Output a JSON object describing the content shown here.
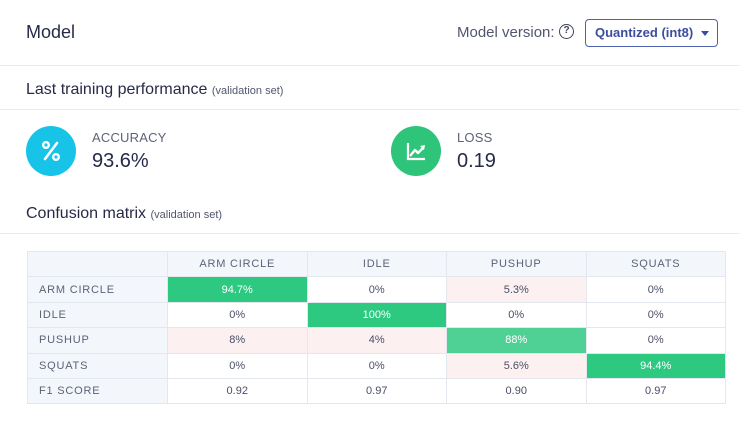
{
  "header": {
    "title": "Model",
    "model_version_label": "Model version:",
    "help_symbol": "?",
    "version_select_value": "Quantized (int8)"
  },
  "training": {
    "heading": "Last training performance",
    "heading_sub": "(validation set)"
  },
  "metrics": {
    "accuracy": {
      "label": "ACCURACY",
      "value": "93.6%",
      "icon": "percent-icon",
      "color": "#17c4e8"
    },
    "loss": {
      "label": "LOSS",
      "value": "0.19",
      "icon": "trending-chart-icon",
      "color": "#2ec47a"
    }
  },
  "confusion": {
    "heading": "Confusion matrix",
    "heading_sub": "(validation set)",
    "columns": [
      "ARM CIRCLE",
      "IDLE",
      "PUSHUP",
      "SQUATS"
    ],
    "rows": [
      {
        "label": "ARM CIRCLE",
        "cells": [
          "94.7%",
          "0%",
          "5.3%",
          "0%"
        ]
      },
      {
        "label": "IDLE",
        "cells": [
          "0%",
          "100%",
          "0%",
          "0%"
        ]
      },
      {
        "label": "PUSHUP",
        "cells": [
          "8%",
          "4%",
          "88%",
          "0%"
        ]
      },
      {
        "label": "SQUATS",
        "cells": [
          "0%",
          "0%",
          "5.6%",
          "94.4%"
        ]
      }
    ],
    "f1": {
      "label": "F1 SCORE",
      "cells": [
        "0.92",
        "0.97",
        "0.90",
        "0.97"
      ]
    }
  }
}
